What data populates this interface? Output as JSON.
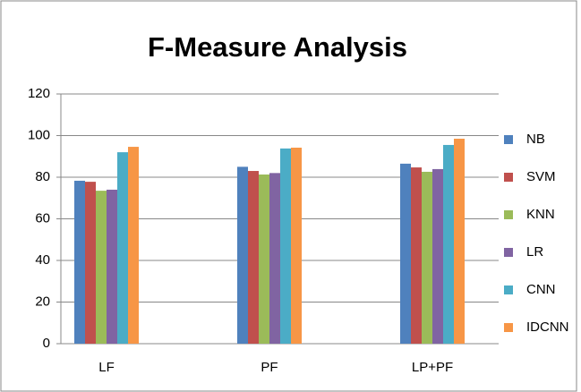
{
  "chart_data": {
    "type": "bar",
    "title": "F-Measure Analysis",
    "categories": [
      "LF",
      "PF",
      "LP+PF"
    ],
    "series": [
      {
        "name": "NB",
        "color": "#4f81bd",
        "values": [
          78.3,
          85,
          86.5
        ]
      },
      {
        "name": "SVM",
        "color": "#c0504d",
        "values": [
          77.8,
          83,
          84.7
        ]
      },
      {
        "name": "KNN",
        "color": "#9bbb59",
        "values": [
          73.5,
          81.3,
          82.6
        ]
      },
      {
        "name": "LR",
        "color": "#8064a2",
        "values": [
          74,
          82,
          83.9
        ]
      },
      {
        "name": "CNN",
        "color": "#4bacc6",
        "values": [
          92,
          93.8,
          95.5
        ]
      },
      {
        "name": "IDCNN",
        "color": "#f79646",
        "values": [
          94.6,
          94.2,
          98.5
        ]
      }
    ],
    "ylim": [
      0,
      120
    ],
    "yticks": [
      0,
      20,
      40,
      60,
      80,
      100,
      120
    ],
    "grid": true,
    "legend": "right"
  }
}
